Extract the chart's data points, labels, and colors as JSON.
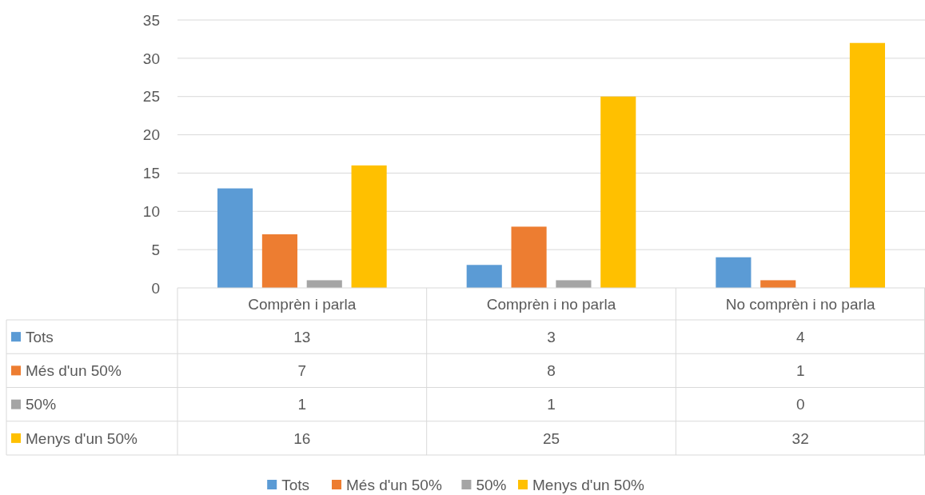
{
  "chart_data": {
    "type": "bar",
    "categories": [
      "Comprèn i parla",
      "Comprèn i no parla",
      "No comprèn i no parla"
    ],
    "series": [
      {
        "name": "Tots",
        "color": "#5b9bd5",
        "values": [
          13,
          3,
          4
        ]
      },
      {
        "name": "Més d'un 50%",
        "color": "#ed7d31",
        "values": [
          7,
          8,
          1
        ]
      },
      {
        "name": "50%",
        "color": "#a5a5a5",
        "values": [
          1,
          1,
          0
        ]
      },
      {
        "name": "Menys d'un 50%",
        "color": "#ffc000",
        "values": [
          16,
          25,
          32
        ]
      }
    ],
    "ylim": [
      0,
      35
    ],
    "yticks": [
      0,
      5,
      10,
      15,
      20,
      25,
      30,
      35
    ],
    "grid": "y",
    "legend": "bottom",
    "data_labels": true
  }
}
